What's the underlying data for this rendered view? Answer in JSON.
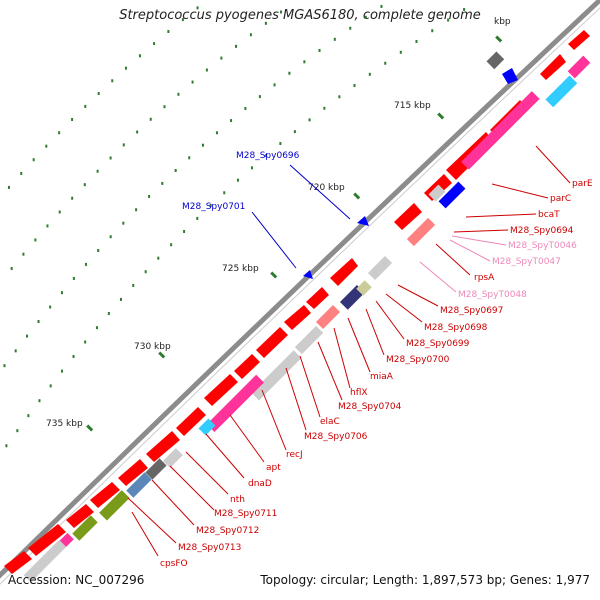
{
  "title": "Streptococcus pyogenes MGAS6180, complete genome",
  "footer": {
    "accession": "Accession: NC_007296",
    "topology": "Topology: circular; Length: 1,897,573 bp; Genes: 1,977"
  },
  "colors": {
    "backbone": "#8c8c8c",
    "gene_red": "#ff0000",
    "pink": "#ff3399",
    "light_grey": "#cccccc",
    "dark_grey": "#666666",
    "blue": "#0000ff",
    "cyan": "#33ccff",
    "steel": "#5a86b8",
    "olive": "#7a9a1a",
    "navy": "#333377",
    "khaki": "#cccc99",
    "salmon": "#ff8080",
    "tick_green": "#2e7d2e",
    "label_red": "#cc0000",
    "label_pink": "#ee88bb",
    "label_blue": "#0000cc"
  },
  "map": {
    "kbp_labels": [
      {
        "text": "kbp",
        "pos": 710
      },
      {
        "text": "715 kbp",
        "pos": 715
      },
      {
        "text": "720 kbp",
        "pos": 720
      },
      {
        "text": "725 kbp",
        "pos": 725
      },
      {
        "text": "730 kbp",
        "pos": 730
      },
      {
        "text": "735 kbp",
        "pos": 735
      }
    ],
    "gene_labels": [
      {
        "text": "parE",
        "color": "label_red"
      },
      {
        "text": "parC",
        "color": "label_red"
      },
      {
        "text": "bcaT",
        "color": "label_red"
      },
      {
        "text": "M28_Spy0694",
        "color": "label_red"
      },
      {
        "text": "M28_SpyT0046",
        "color": "label_pink"
      },
      {
        "text": "M28_SpyT0047",
        "color": "label_pink"
      },
      {
        "text": "rpsA",
        "color": "label_red"
      },
      {
        "text": "M28_SpyT0048",
        "color": "label_pink"
      },
      {
        "text": "M28_Spy0697",
        "color": "label_red"
      },
      {
        "text": "M28_Spy0698",
        "color": "label_red"
      },
      {
        "text": "M28_Spy0699",
        "color": "label_red"
      },
      {
        "text": "M28_Spy0700",
        "color": "label_red"
      },
      {
        "text": "miaA",
        "color": "label_red"
      },
      {
        "text": "hflX",
        "color": "label_red"
      },
      {
        "text": "M28_Spy0704",
        "color": "label_red"
      },
      {
        "text": "elaC",
        "color": "label_red"
      },
      {
        "text": "M28_Spy0706",
        "color": "label_red"
      },
      {
        "text": "recJ",
        "color": "label_red"
      },
      {
        "text": "apt",
        "color": "label_red"
      },
      {
        "text": "dnaD",
        "color": "label_red"
      },
      {
        "text": "nth",
        "color": "label_red"
      },
      {
        "text": "M28_Spy0711",
        "color": "label_red"
      },
      {
        "text": "M28_Spy0712",
        "color": "label_red"
      },
      {
        "text": "M28_Spy0713",
        "color": "label_red"
      },
      {
        "text": "cpsFO",
        "color": "label_red"
      }
    ],
    "inner_labels": [
      {
        "text": "M28_Spy0696",
        "color": "label_blue"
      },
      {
        "text": "M28_Spy0701",
        "color": "label_blue"
      }
    ]
  }
}
